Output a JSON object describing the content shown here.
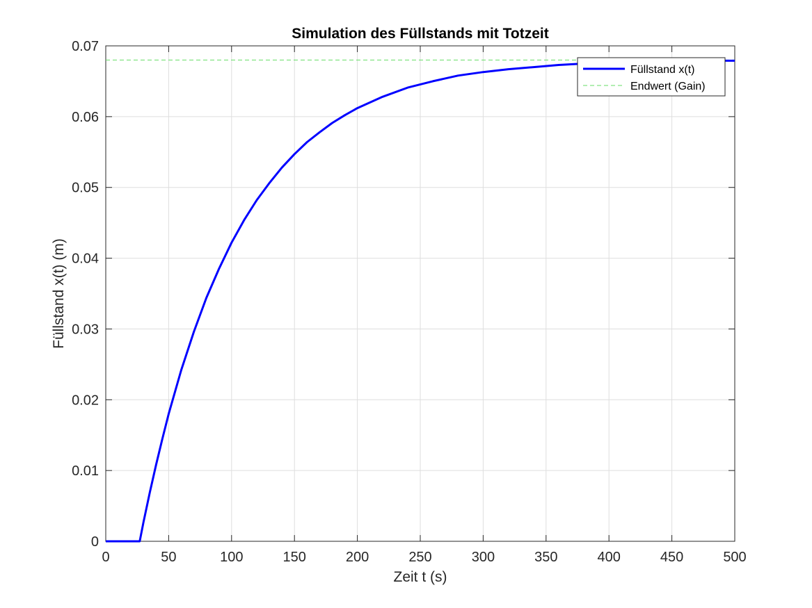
{
  "chart_data": {
    "type": "line",
    "title": "Simulation des Füllstands mit Totzeit",
    "xlabel": "Zeit t (s)",
    "ylabel": "Füllstand x(t) (m)",
    "xlim": [
      0,
      500
    ],
    "ylim": [
      0,
      0.07
    ],
    "x_ticks": [
      0,
      50,
      100,
      150,
      200,
      250,
      300,
      350,
      400,
      450,
      500
    ],
    "x_tick_labels": [
      "0",
      "50",
      "100",
      "150",
      "200",
      "250",
      "300",
      "350",
      "400",
      "450",
      "500"
    ],
    "y_ticks": [
      0,
      0.01,
      0.02,
      0.03,
      0.04,
      0.05,
      0.06,
      0.07
    ],
    "y_tick_labels": [
      "0",
      "0.01",
      "0.02",
      "0.03",
      "0.04",
      "0.05",
      "0.06",
      "0.07"
    ],
    "grid": true,
    "legend_position": "top-right",
    "series": [
      {
        "name": "Füllstand x(t)",
        "color": "#0000ff",
        "style": "solid",
        "x": [
          0,
          27,
          30,
          35,
          40,
          45,
          50,
          60,
          70,
          80,
          90,
          100,
          110,
          120,
          130,
          140,
          150,
          160,
          170,
          180,
          190,
          200,
          220,
          240,
          260,
          280,
          300,
          320,
          340,
          360,
          380,
          400,
          420,
          440,
          460,
          480,
          500
        ],
        "y": [
          0,
          0,
          0.0027,
          0.0069,
          0.0108,
          0.0145,
          0.018,
          0.0242,
          0.0296,
          0.0344,
          0.0385,
          0.0422,
          0.0454,
          0.0482,
          0.0506,
          0.0528,
          0.0547,
          0.0564,
          0.0578,
          0.0591,
          0.0602,
          0.0612,
          0.0628,
          0.0641,
          0.065,
          0.0658,
          0.0663,
          0.0667,
          0.067,
          0.0673,
          0.0675,
          0.0676,
          0.0677,
          0.0678,
          0.0678,
          0.0679,
          0.0679
        ]
      },
      {
        "name": "Endwert (Gain)",
        "color": "#66dd66",
        "style": "dashed",
        "x": [
          0,
          500
        ],
        "y": [
          0.068,
          0.068
        ]
      }
    ]
  }
}
